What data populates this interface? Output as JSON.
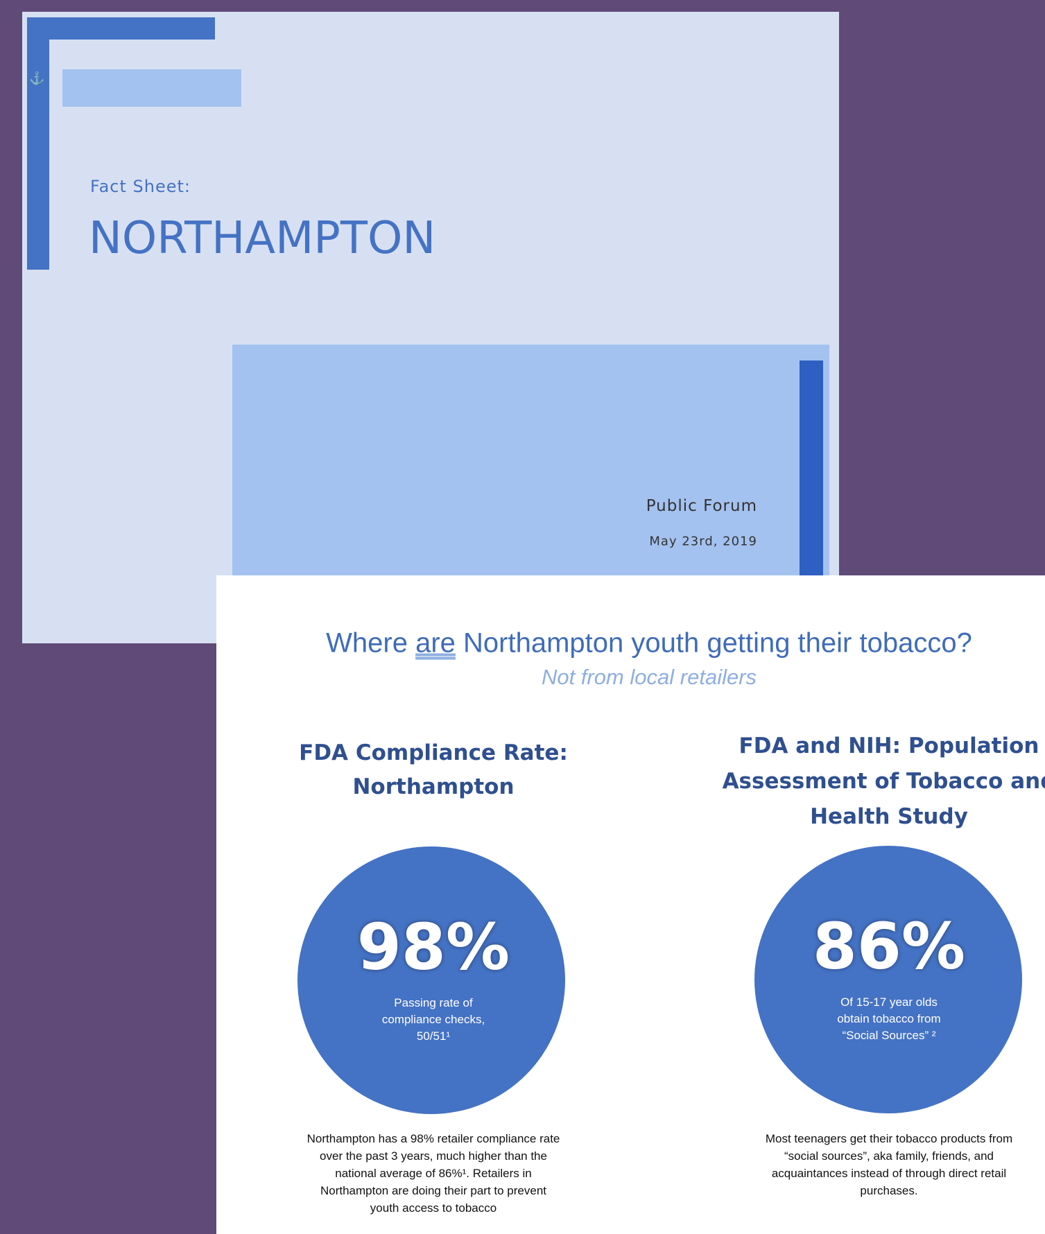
{
  "cover": {
    "label": "Fact Sheet:",
    "title": "NORTHAMPTON",
    "event": "Public Forum",
    "date": "May 23rd, 2019"
  },
  "page": {
    "title": [
      "Where ",
      "are",
      " Northampton youth getting their tobacco?"
    ],
    "subtitle": "Not from local retailers",
    "left": {
      "heading": [
        "FDA Compliance Rate:",
        "Northampton"
      ],
      "stat": "98%",
      "caption": [
        "Passing rate of",
        "compliance checks,",
        "50/51¹"
      ],
      "body": [
        "Northampton has a 98% retailer compliance rate",
        "over the past 3 years, much higher than the",
        "national average of 86%¹. Retailers in",
        "Northampton are doing their part to prevent",
        "youth access to tobacco"
      ]
    },
    "right": {
      "heading": [
        "FDA and NIH: Population",
        "Assessment of Tobacco and",
        "Health Study"
      ],
      "stat": "86%",
      "caption": [
        "Of 15-17 year olds",
        "obtain tobacco from",
        "“Social Sources” ²"
      ],
      "body": [
        "Most teenagers get their tobacco products from",
        "“social sources”, aka family, friends, and",
        "acquaintances instead of through direct retail",
        "purchases."
      ]
    }
  }
}
